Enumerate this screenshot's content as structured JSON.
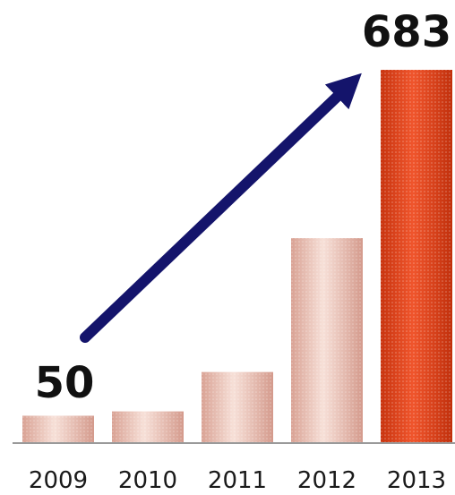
{
  "chart_data": {
    "type": "bar",
    "title": "",
    "xlabel": "",
    "ylabel": "",
    "categories": [
      "2009",
      "2010",
      "2011",
      "2012",
      "2013"
    ],
    "values": [
      50,
      58,
      130,
      375,
      683
    ],
    "ylim": [
      0,
      700
    ],
    "grid": false,
    "legend": "none",
    "data_labels": [
      {
        "category": "2009",
        "text": "50"
      },
      {
        "category": "2013",
        "text": "683"
      }
    ],
    "annotation": "arrow-from-2009-to-2013",
    "colors": {
      "bar_light": "#f0c9be",
      "bar_light_dark": "#dba598",
      "bar_highlight": "#e8451f",
      "bar_highlight_dark": "#c8340f",
      "arrow": "#14146b",
      "axis": "#9a9a9a"
    }
  }
}
